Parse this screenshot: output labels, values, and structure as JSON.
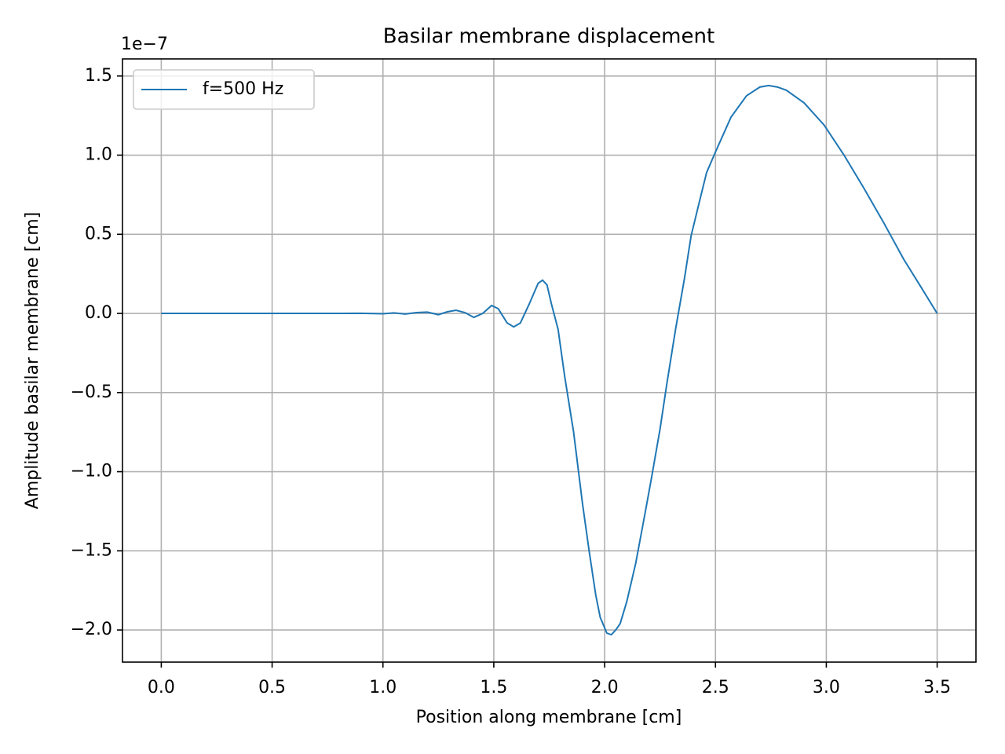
{
  "chart_data": {
    "type": "line",
    "title": "Basilar membrane displacement",
    "x_label": "Position along membrane [cm]",
    "y_label": "Amplitude basilar membrane [cm]",
    "y_offset_text": "1e−7",
    "x": [
      0.0,
      0.5,
      0.8,
      0.9,
      1.0,
      1.05,
      1.1,
      1.15,
      1.2,
      1.25,
      1.29,
      1.33,
      1.37,
      1.41,
      1.45,
      1.49,
      1.52,
      1.56,
      1.59,
      1.62,
      1.66,
      1.7,
      1.72,
      1.74,
      1.76,
      1.79,
      1.82,
      1.86,
      1.9,
      1.93,
      1.96,
      1.98,
      2.01,
      2.03,
      2.05,
      2.07,
      2.1,
      2.14,
      2.18,
      2.21,
      2.25,
      2.28,
      2.32,
      2.36,
      2.39,
      2.43,
      2.46,
      2.5,
      2.57,
      2.64,
      2.7,
      2.74,
      2.78,
      2.82,
      2.9,
      2.99,
      3.08,
      3.17,
      3.26,
      3.35,
      3.43,
      3.5
    ],
    "series": [
      {
        "name": "f=500 Hz",
        "color": "#1f77b4",
        "values": [
          0.0,
          0.0,
          0.0,
          0.001,
          -0.002,
          0.003,
          -0.004,
          0.005,
          0.008,
          -0.008,
          0.01,
          0.02,
          0.005,
          -0.025,
          0.0,
          0.05,
          0.03,
          -0.06,
          -0.085,
          -0.06,
          0.06,
          0.19,
          0.21,
          0.18,
          0.06,
          -0.1,
          -0.4,
          -0.75,
          -1.2,
          -1.5,
          -1.78,
          -1.92,
          -2.02,
          -2.03,
          -2.0,
          -1.96,
          -1.82,
          -1.58,
          -1.28,
          -1.05,
          -0.73,
          -0.45,
          -0.1,
          0.22,
          0.49,
          0.72,
          0.89,
          1.02,
          1.24,
          1.375,
          1.43,
          1.44,
          1.43,
          1.41,
          1.33,
          1.19,
          1.0,
          0.79,
          0.57,
          0.34,
          0.16,
          0.0
        ]
      }
    ],
    "xlim": [
      -0.175,
      3.675
    ],
    "ylim": [
      -2.203,
      1.608
    ],
    "xticks": [
      {
        "value": 0,
        "label": "0.0"
      },
      {
        "value": 0.5,
        "label": "0.5"
      },
      {
        "value": 1,
        "label": "1.0"
      },
      {
        "value": 1.5,
        "label": "1.5"
      },
      {
        "value": 2,
        "label": "2.0"
      },
      {
        "value": 2.5,
        "label": "2.5"
      },
      {
        "value": 3,
        "label": "3.0"
      },
      {
        "value": 3.5,
        "label": "3.5"
      }
    ],
    "yticks": [
      {
        "value": -2,
        "label": "−2.0"
      },
      {
        "value": -1.5,
        "label": "−1.5"
      },
      {
        "value": -1,
        "label": "−1.0"
      },
      {
        "value": -0.5,
        "label": "−0.5"
      },
      {
        "value": 0,
        "label": "0.0"
      },
      {
        "value": 0.5,
        "label": "0.5"
      },
      {
        "value": 1,
        "label": "1.0"
      },
      {
        "value": 1.5,
        "label": "1.5"
      }
    ],
    "grid": true,
    "legend": "upper left"
  }
}
